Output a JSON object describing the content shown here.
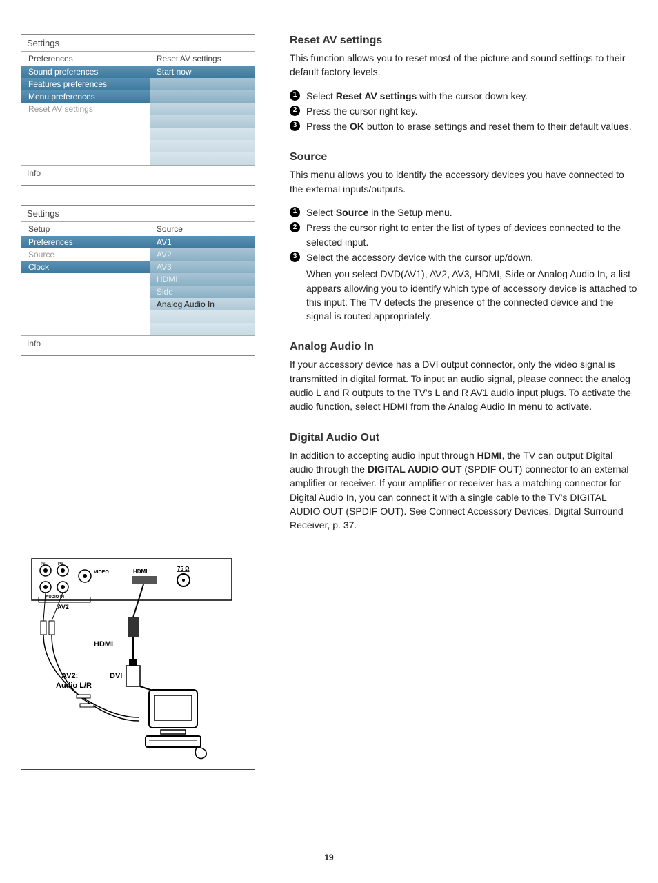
{
  "menu1": {
    "title": "Settings",
    "left_header": "Preferences",
    "right_header": "Reset AV settings",
    "left_rows": [
      {
        "label": "Sound preferences",
        "cls": "highlight"
      },
      {
        "label": "Features preferences",
        "cls": "highlight"
      },
      {
        "label": "Menu preferences",
        "cls": "highlight"
      },
      {
        "label": "Reset AV settings",
        "cls": "gray"
      },
      {
        "label": "",
        "cls": ""
      },
      {
        "label": "",
        "cls": ""
      },
      {
        "label": "",
        "cls": ""
      },
      {
        "label": "",
        "cls": ""
      }
    ],
    "right_rows": [
      {
        "label": "Start now",
        "cls": "highlight"
      },
      {
        "label": "",
        "cls": "fade"
      },
      {
        "label": "",
        "cls": "fade"
      },
      {
        "label": "",
        "cls": "fade-light"
      },
      {
        "label": "",
        "cls": "fade-light"
      },
      {
        "label": "",
        "cls": "fade-lighter"
      },
      {
        "label": "",
        "cls": "fade-lighter"
      },
      {
        "label": "",
        "cls": "fade-lighter"
      }
    ],
    "info": "Info"
  },
  "menu2": {
    "title": "Settings",
    "left_header": "Setup",
    "right_header": "Source",
    "left_rows": [
      {
        "label": "Preferences",
        "cls": "highlight"
      },
      {
        "label": "Source",
        "cls": "gray"
      },
      {
        "label": "Clock",
        "cls": "highlight"
      },
      {
        "label": "",
        "cls": ""
      },
      {
        "label": "",
        "cls": ""
      },
      {
        "label": "",
        "cls": ""
      },
      {
        "label": "",
        "cls": ""
      },
      {
        "label": "",
        "cls": ""
      }
    ],
    "right_rows": [
      {
        "label": "AV1",
        "cls": "highlight"
      },
      {
        "label": "AV2",
        "cls": "fade"
      },
      {
        "label": "AV3",
        "cls": "fade"
      },
      {
        "label": "HDMI",
        "cls": "fade"
      },
      {
        "label": "Side",
        "cls": "fade"
      },
      {
        "label": "Analog Audio In",
        "cls": "fade-light"
      },
      {
        "label": "",
        "cls": "fade-lighter"
      },
      {
        "label": "",
        "cls": "fade-lighter"
      }
    ],
    "info": "Info"
  },
  "diagram": {
    "port_labels": {
      "hdmi_port": "HDMI",
      "av2": "AV2",
      "audio_in": "AUDIO IN",
      "video": "VIDEO",
      "ohm": "75 Ω"
    },
    "cable_labels": {
      "hdmi": "HDMI",
      "dvi": "DVI",
      "av2_audio": "AV2:\nAudio L/R"
    }
  },
  "content": {
    "reset": {
      "title": "Reset AV settings",
      "intro": "This function allows you to reset most of the picture and sound settings to their default factory levels.",
      "steps": [
        "Select <b>Reset AV settings</b> with the cursor down key.",
        "Press the cursor right key.",
        "Press the <b>OK</b> button to erase settings and reset them to their default values."
      ]
    },
    "source": {
      "title": "Source",
      "intro": "This menu allows you to identify the accessory devices you have connected to the external inputs/outputs.",
      "steps": [
        "Select <b>Source</b> in the Setup menu.",
        "Press the cursor right to enter the list of types of devices connected to the selected input.",
        "Select the accessory device with the cursor up/down."
      ],
      "after": "When you select DVD(AV1), AV2, AV3, HDMI, Side or Analog Audio In, a list appears allowing you to identify which type of accessory device is attached to this input. The TV detects the presence of the connected device and the signal is routed appropriately."
    },
    "analog": {
      "title": "Analog Audio In",
      "body": "If your accessory device has a DVI output connector, only the video signal is transmitted in digital format.  To input an audio signal, please connect the analog audio L and R outputs to the TV's L and R AV1 audio input plugs.  To activate the audio function, select  HDMI from the Analog Audio In menu to activate."
    },
    "digital": {
      "title": "Digital Audio Out",
      "body": "In addition to accepting audio input through <b>HDMI</b>, the TV can output Digital audio through the <b>DIGITAL AUDIO OUT</b> (SPDIF OUT) connector to an external amplifier or receiver. If your amplifier or receiver has a matching connector for Digital Audio In, you can connect it with a single cable to the TV's DIGITAL AUDIO OUT (SPDIF OUT). See Connect Accessory Devices, Digital Surround Receiver, p. 37."
    }
  },
  "page_number": "19"
}
